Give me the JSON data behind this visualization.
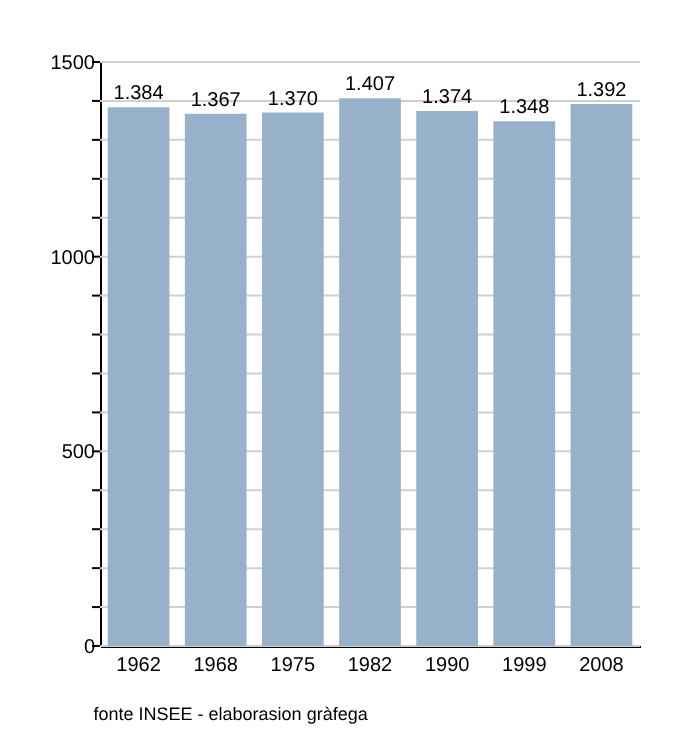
{
  "chart_data": {
    "type": "bar",
    "categories": [
      "1962",
      "1968",
      "1975",
      "1982",
      "1990",
      "1999",
      "2008"
    ],
    "values": [
      1384,
      1367,
      1370,
      1407,
      1374,
      1348,
      1392
    ],
    "value_labels": [
      "1.384",
      "1.367",
      "1.370",
      "1.407",
      "1.374",
      "1.348",
      "1.392"
    ],
    "color": "#97b1cb",
    "ylim": [
      0,
      1500
    ],
    "yticks": [
      0,
      {
        "value": 100,
        "label": null
      },
      {
        "value": 200,
        "label": null
      },
      {
        "value": 300,
        "label": null
      },
      {
        "value": 400,
        "label": null
      },
      500,
      {
        "value": 600,
        "label": null
      },
      {
        "value": 700,
        "label": null
      },
      {
        "value": 800,
        "label": null
      },
      {
        "value": 900,
        "label": null
      },
      1000,
      {
        "value": 1100,
        "label": null
      },
      {
        "value": 1200,
        "label": null
      },
      {
        "value": 1300,
        "label": null
      },
      {
        "value": 1400,
        "label": null
      },
      1500
    ],
    "grid": true,
    "annotations": [
      "fonte INSEE - elaborasion gràfega"
    ]
  }
}
